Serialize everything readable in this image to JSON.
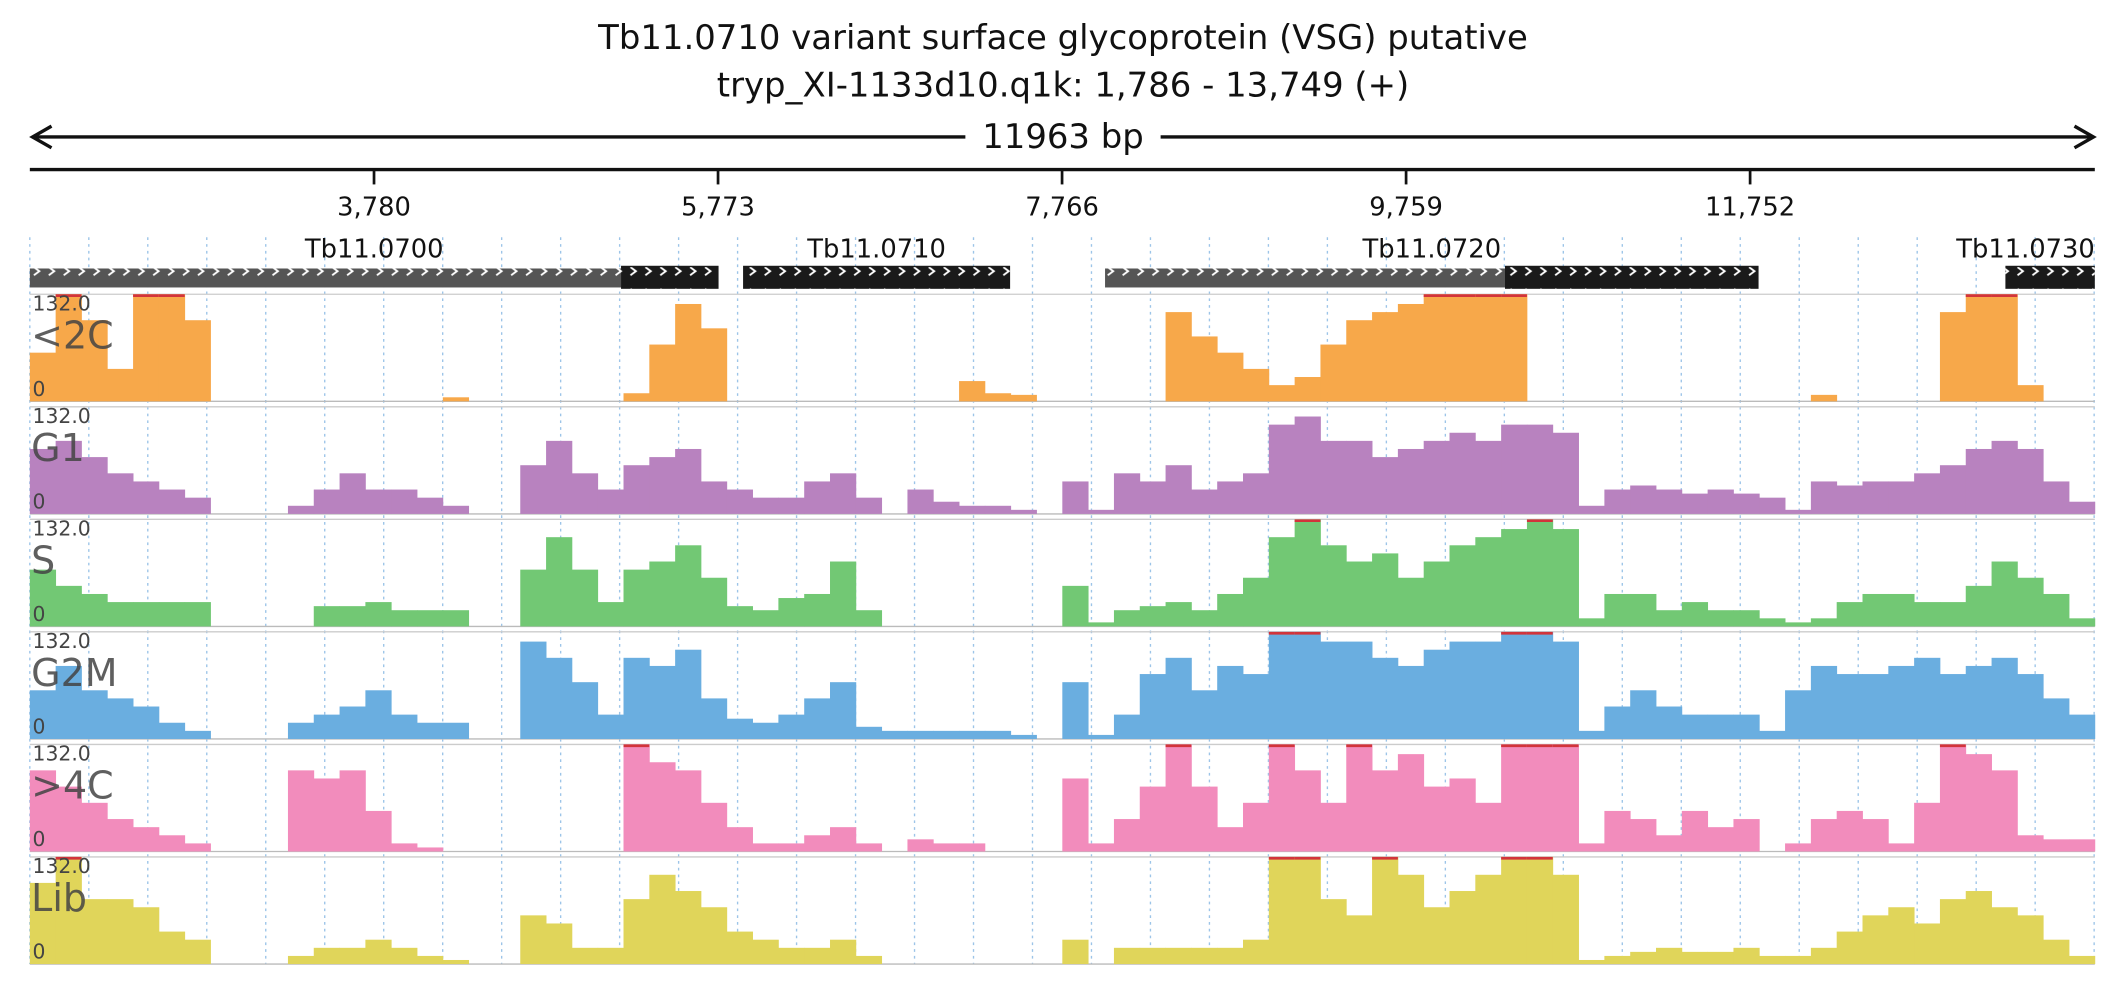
{
  "header": {
    "title": "Tb11.0710  variant surface glycoprotein (VSG)  putative",
    "subtitle": "tryp_XI-1133d10.q1k: 1,786 - 13,749 (+)",
    "span_label": "11963 bp"
  },
  "axis": {
    "xlim": [
      1786,
      13749
    ],
    "xticks": [
      {
        "value": 3780,
        "label": "3,780"
      },
      {
        "value": 5773,
        "label": "5,773"
      },
      {
        "value": 7766,
        "label": "7,766"
      },
      {
        "value": 9759,
        "label": "9,759"
      },
      {
        "value": 11752,
        "label": "11,752"
      }
    ]
  },
  "genes": [
    {
      "label": "Tb11.0700",
      "start": 1786,
      "cds_start": 5211,
      "end": 5776
    },
    {
      "label": "Tb11.0710",
      "start": 5918,
      "cds_start": 5918,
      "end": 7465
    },
    {
      "label": "Tb11.0720",
      "start": 8015,
      "cds_start": 10332,
      "end": 11801
    },
    {
      "label": "Tb11.0730",
      "start": 13231,
      "cds_start": 13231,
      "end": 13749
    }
  ],
  "tracks": [
    {
      "name": "<2C",
      "color": "#f7a84a",
      "ylim": [
        0,
        132
      ],
      "yticks": [
        0,
        {
          "value": 132,
          "label": "132.0"
        }
      ],
      "values": [
        60,
        132,
        100,
        40,
        132,
        132,
        100,
        0,
        0,
        0,
        0,
        0,
        0,
        0,
        0,
        0,
        5,
        0,
        0,
        0,
        0,
        0,
        0,
        10,
        70,
        120,
        90,
        0,
        0,
        0,
        0,
        0,
        0,
        0,
        0,
        0,
        25,
        10,
        8,
        0,
        0,
        0,
        0,
        0,
        110,
        80,
        60,
        40,
        20,
        30,
        70,
        100,
        110,
        120,
        132,
        132,
        132,
        132,
        0,
        0,
        0,
        0,
        0,
        0,
        0,
        0,
        0,
        0,
        0,
        8,
        0,
        0,
        0,
        0,
        110,
        132,
        132,
        20,
        0,
        0
      ]
    },
    {
      "name": "G1",
      "color": "#b882bf",
      "ylim": [
        0,
        132
      ],
      "yticks": [
        0,
        {
          "value": 132,
          "label": "132.0"
        }
      ],
      "values": [
        80,
        90,
        70,
        50,
        40,
        30,
        20,
        0,
        0,
        0,
        10,
        30,
        50,
        30,
        30,
        20,
        10,
        0,
        0,
        60,
        90,
        50,
        30,
        60,
        70,
        80,
        40,
        30,
        20,
        20,
        40,
        50,
        20,
        0,
        30,
        15,
        10,
        10,
        5,
        0,
        40,
        5,
        50,
        40,
        60,
        30,
        40,
        50,
        110,
        120,
        90,
        90,
        70,
        80,
        90,
        100,
        90,
        110,
        110,
        100,
        10,
        30,
        35,
        30,
        25,
        30,
        25,
        20,
        5,
        40,
        35,
        40,
        40,
        50,
        60,
        80,
        90,
        80,
        40,
        15
      ]
    },
    {
      "name": "S",
      "color": "#72c874",
      "ylim": [
        0,
        132
      ],
      "yticks": [
        0,
        {
          "value": 132,
          "label": "132.0"
        }
      ],
      "values": [
        70,
        50,
        40,
        30,
        30,
        30,
        30,
        0,
        0,
        0,
        0,
        25,
        25,
        30,
        20,
        20,
        20,
        0,
        0,
        70,
        110,
        70,
        30,
        70,
        80,
        100,
        60,
        25,
        20,
        35,
        40,
        80,
        20,
        0,
        0,
        0,
        0,
        0,
        0,
        0,
        50,
        5,
        20,
        25,
        30,
        20,
        40,
        60,
        110,
        132,
        100,
        80,
        90,
        60,
        80,
        100,
        110,
        120,
        132,
        120,
        10,
        40,
        40,
        20,
        30,
        20,
        20,
        10,
        5,
        10,
        30,
        40,
        40,
        30,
        30,
        50,
        80,
        60,
        40,
        10
      ]
    },
    {
      "name": "G2M",
      "color": "#6aaee0",
      "ylim": [
        0,
        132
      ],
      "yticks": [
        0,
        {
          "value": 132,
          "label": "132.0"
        }
      ],
      "values": [
        60,
        90,
        60,
        50,
        40,
        20,
        10,
        0,
        0,
        0,
        20,
        30,
        40,
        60,
        30,
        20,
        20,
        0,
        0,
        120,
        100,
        70,
        30,
        100,
        90,
        110,
        50,
        25,
        20,
        30,
        50,
        70,
        15,
        10,
        10,
        10,
        10,
        10,
        5,
        0,
        70,
        5,
        30,
        80,
        100,
        60,
        90,
        80,
        132,
        132,
        120,
        120,
        100,
        90,
        110,
        120,
        120,
        132,
        132,
        120,
        10,
        40,
        60,
        40,
        30,
        30,
        30,
        10,
        60,
        90,
        80,
        80,
        90,
        100,
        80,
        90,
        100,
        80,
        50,
        30
      ]
    },
    {
      "name": ">4C",
      "color": "#f28cbc",
      "ylim": [
        0,
        132
      ],
      "yticks": [
        0,
        {
          "value": 132,
          "label": "132.0"
        }
      ],
      "values": [
        100,
        80,
        60,
        40,
        30,
        20,
        10,
        0,
        0,
        0,
        100,
        90,
        100,
        50,
        10,
        5,
        0,
        0,
        0,
        0,
        0,
        0,
        0,
        132,
        110,
        100,
        60,
        30,
        10,
        10,
        20,
        30,
        10,
        0,
        15,
        10,
        10,
        0,
        0,
        0,
        90,
        10,
        40,
        80,
        132,
        80,
        30,
        60,
        132,
        100,
        60,
        132,
        100,
        120,
        80,
        90,
        60,
        132,
        132,
        132,
        10,
        50,
        40,
        20,
        50,
        30,
        40,
        0,
        10,
        40,
        50,
        40,
        10,
        60,
        132,
        120,
        100,
        20,
        15,
        15
      ]
    },
    {
      "name": "Lib",
      "color": "#e0d55a",
      "ylim": [
        0,
        132
      ],
      "yticks": [
        0,
        {
          "value": 132,
          "label": "132.0"
        }
      ],
      "values": [
        100,
        132,
        80,
        80,
        70,
        40,
        30,
        0,
        0,
        0,
        10,
        20,
        20,
        30,
        20,
        10,
        5,
        0,
        0,
        60,
        50,
        20,
        20,
        80,
        110,
        90,
        70,
        40,
        30,
        20,
        20,
        30,
        10,
        0,
        0,
        0,
        0,
        0,
        0,
        0,
        30,
        0,
        20,
        20,
        20,
        20,
        20,
        30,
        132,
        132,
        80,
        60,
        132,
        110,
        70,
        90,
        110,
        132,
        132,
        110,
        5,
        10,
        15,
        20,
        15,
        15,
        20,
        10,
        10,
        20,
        40,
        60,
        70,
        50,
        80,
        90,
        70,
        60,
        30,
        10
      ]
    }
  ]
}
